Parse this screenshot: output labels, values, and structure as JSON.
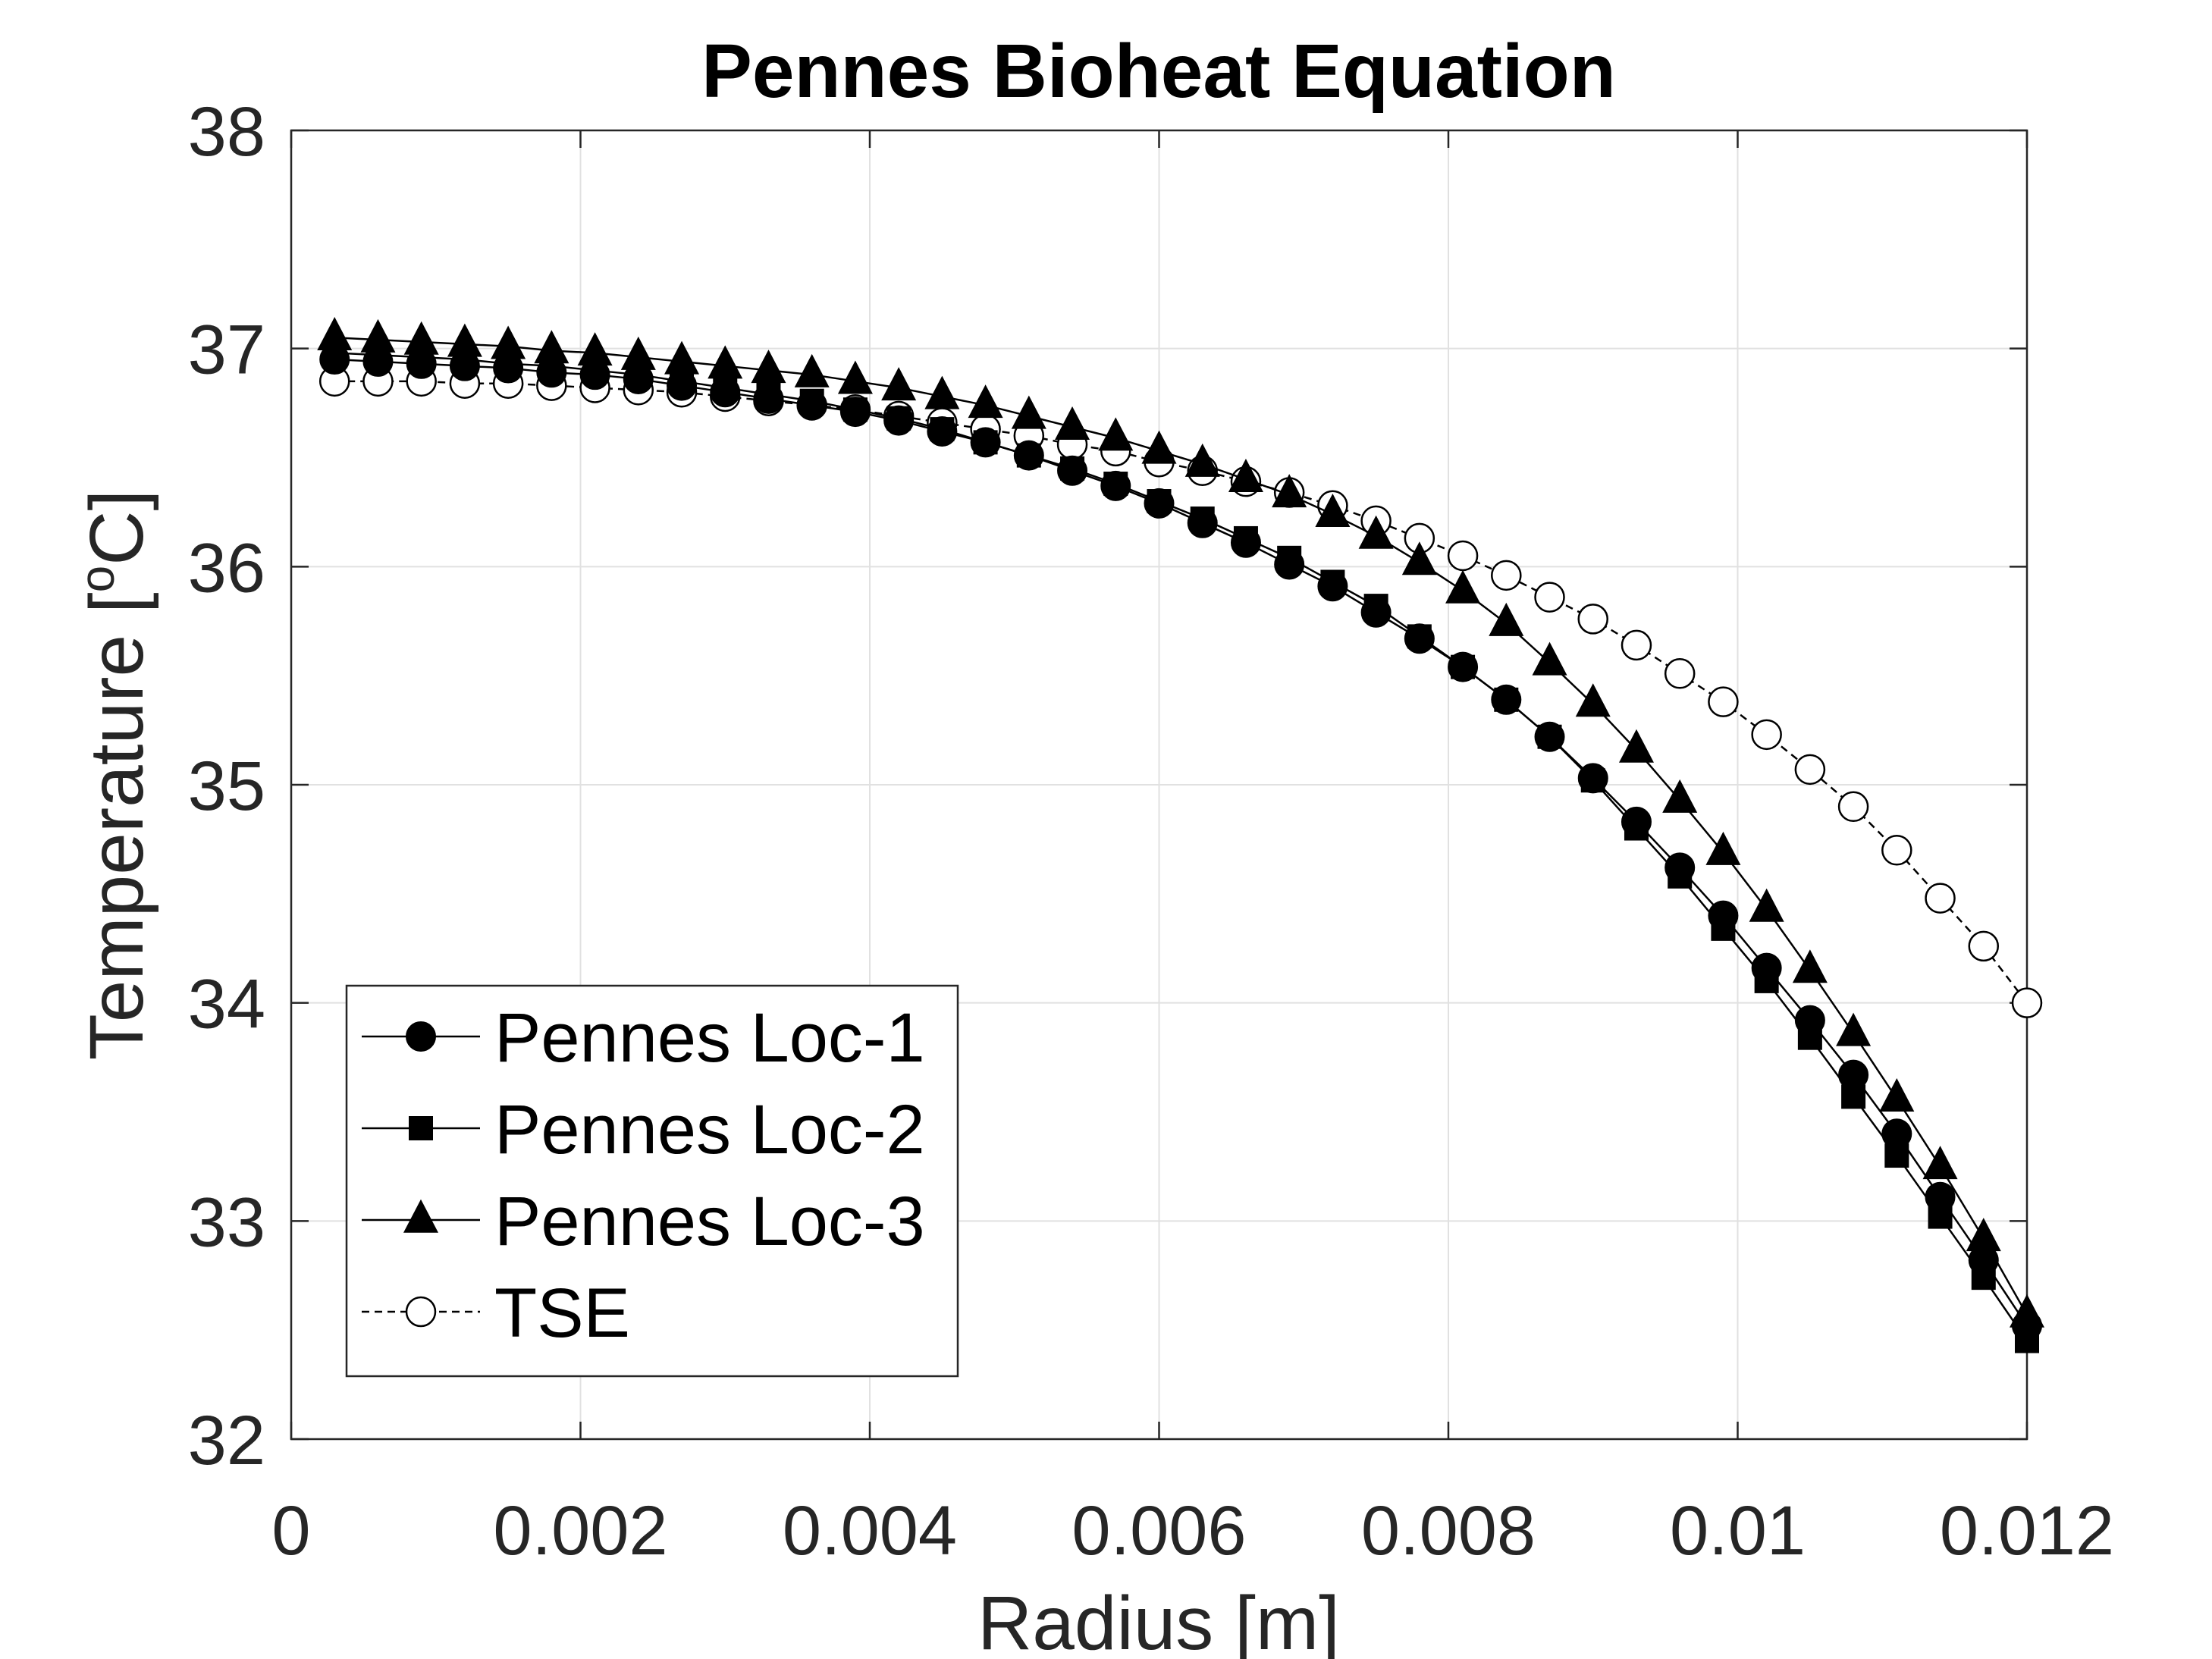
{
  "chart_data": {
    "type": "line",
    "title": "Pennes Bioheat Equation",
    "xlabel": "Radius [m]",
    "ylabel_main": "Temperature [",
    "ylabel_super": "o",
    "ylabel_end": "C]",
    "xlim": [
      0,
      0.012
    ],
    "ylim": [
      32,
      38
    ],
    "xticks": [
      0,
      0.002,
      0.004,
      0.006,
      0.008,
      0.01,
      0.012
    ],
    "xtick_labels": [
      "0",
      "0.002",
      "0.004",
      "0.006",
      "0.008",
      "0.01",
      "0.012"
    ],
    "yticks": [
      32,
      33,
      34,
      35,
      36,
      37,
      38
    ],
    "ytick_labels": [
      "32",
      "33",
      "34",
      "35",
      "36",
      "37",
      "38"
    ],
    "grid": true,
    "legend_position": "bottom-left",
    "x": [
      0.0003,
      0.0006,
      0.0009,
      0.0012,
      0.0015,
      0.0018,
      0.0021,
      0.0024,
      0.0027,
      0.003,
      0.0033,
      0.0036,
      0.0039,
      0.0042,
      0.0045,
      0.0048,
      0.0051,
      0.0054,
      0.0057,
      0.006,
      0.0063,
      0.0066,
      0.0069,
      0.0072,
      0.0075,
      0.0078,
      0.0081,
      0.0084,
      0.0087,
      0.009,
      0.0093,
      0.0096,
      0.0099,
      0.0102,
      0.0105,
      0.0108,
      0.0111,
      0.0114,
      0.0117,
      0.012
    ],
    "series": [
      {
        "name": "Pennes Loc-1",
        "marker": "circle-filled",
        "line": "solid",
        "values": [
          36.95,
          36.94,
          36.93,
          36.92,
          36.91,
          36.89,
          36.88,
          36.86,
          36.83,
          36.8,
          36.77,
          36.74,
          36.71,
          36.67,
          36.62,
          36.57,
          36.51,
          36.44,
          36.37,
          36.29,
          36.2,
          36.11,
          36.01,
          35.91,
          35.79,
          35.67,
          35.54,
          35.39,
          35.22,
          35.03,
          34.83,
          34.62,
          34.4,
          34.16,
          33.92,
          33.67,
          33.4,
          33.11,
          32.82,
          32.52
        ]
      },
      {
        "name": "Pennes Loc-2",
        "marker": "square-filled",
        "line": "solid",
        "values": [
          36.98,
          36.97,
          36.96,
          36.95,
          36.93,
          36.92,
          36.9,
          36.88,
          36.85,
          36.82,
          36.79,
          36.76,
          36.72,
          36.68,
          36.63,
          36.57,
          36.51,
          36.45,
          36.38,
          36.3,
          36.22,
          36.13,
          36.04,
          35.93,
          35.82,
          35.68,
          35.54,
          35.39,
          35.22,
          35.02,
          34.8,
          34.58,
          34.34,
          34.1,
          33.84,
          33.57,
          33.3,
          33.02,
          32.74,
          32.45
        ]
      },
      {
        "name": "Pennes Loc-3",
        "marker": "triangle-filled",
        "line": "solid",
        "values": [
          37.05,
          37.04,
          37.03,
          37.02,
          37.01,
          36.99,
          36.98,
          36.96,
          36.94,
          36.92,
          36.9,
          36.88,
          36.85,
          36.82,
          36.78,
          36.74,
          36.69,
          36.64,
          36.59,
          36.53,
          36.47,
          36.4,
          36.33,
          36.24,
          36.14,
          36.02,
          35.89,
          35.74,
          35.56,
          35.37,
          35.16,
          34.93,
          34.69,
          34.43,
          34.15,
          33.86,
          33.56,
          33.25,
          32.92,
          32.57
        ]
      },
      {
        "name": "TSE",
        "marker": "circle-open",
        "line": "dashed",
        "values": [
          36.85,
          36.85,
          36.85,
          36.84,
          36.84,
          36.83,
          36.82,
          36.81,
          36.8,
          36.78,
          36.76,
          36.74,
          36.72,
          36.69,
          36.66,
          36.63,
          36.6,
          36.56,
          36.53,
          36.48,
          36.44,
          36.39,
          36.34,
          36.28,
          36.21,
          36.13,
          36.05,
          35.96,
          35.86,
          35.76,
          35.64,
          35.51,
          35.38,
          35.23,
          35.07,
          34.9,
          34.7,
          34.48,
          34.26,
          34.0
        ]
      }
    ]
  },
  "colors": {
    "background": "#ffffff",
    "axis": "#262626",
    "grid": "#e1e1e1",
    "series": "#000000",
    "open_marker_fill": "#ffffff"
  }
}
